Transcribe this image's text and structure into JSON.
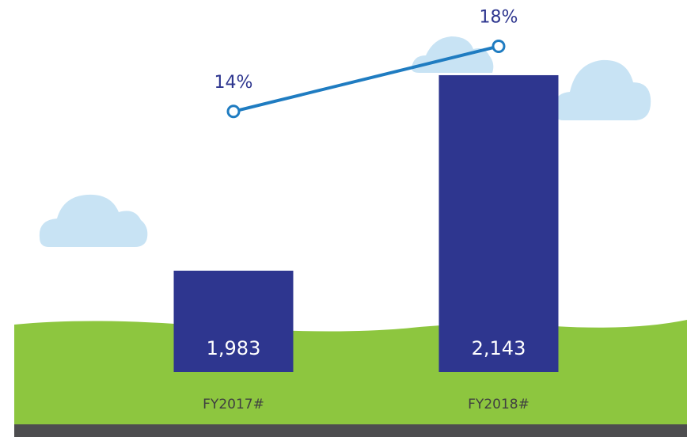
{
  "chart_data": {
    "type": "combo",
    "categories": [
      "FY2017#",
      "FY2018#"
    ],
    "ylim": [
      1900,
      2200
    ],
    "y2lim": [
      -2,
      20.5
    ],
    "series": [
      {
        "type": "bar",
        "color": "#2e368f",
        "values": [
          1983,
          2143
        ],
        "value_labels": [
          "1,983",
          "2,143"
        ]
      },
      {
        "type": "line",
        "axis": "y2",
        "color": "#1f7cc1",
        "values": [
          14,
          18
        ],
        "value_labels": [
          "14%",
          "18%"
        ]
      }
    ]
  }
}
